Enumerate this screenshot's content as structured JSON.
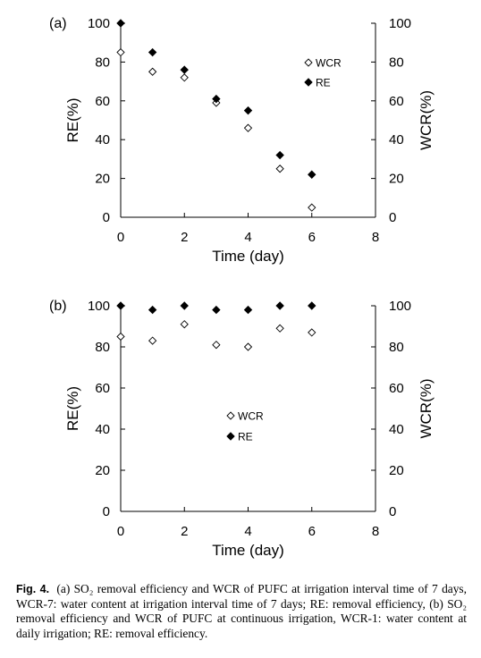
{
  "chart_data": [
    {
      "type": "scatter",
      "panel_label": "(a)",
      "xlabel": "Time (day)",
      "ylabel_left": "RE(%)",
      "ylabel_right": "WCR(%)",
      "xlim": [
        0,
        8
      ],
      "ylim": [
        0,
        100
      ],
      "xticks": [
        "0",
        "2",
        "4",
        "6",
        "8"
      ],
      "yticks": [
        "0",
        "20",
        "40",
        "60",
        "80",
        "100"
      ],
      "legend_position": "right",
      "grid": false,
      "series": [
        {
          "name": "WCR",
          "marker": "open-diamond",
          "color": "#000000",
          "x": [
            0,
            1,
            2,
            3,
            4,
            5,
            6
          ],
          "y": [
            85,
            75,
            72,
            59,
            46,
            25,
            5
          ]
        },
        {
          "name": "RE",
          "marker": "filled-diamond",
          "color": "#000000",
          "x": [
            0,
            1,
            2,
            3,
            4,
            5,
            6
          ],
          "y": [
            100,
            85,
            76,
            61,
            55,
            32,
            22
          ]
        }
      ]
    },
    {
      "type": "scatter",
      "panel_label": "(b)",
      "xlabel": "Time (day)",
      "ylabel_left": "RE(%)",
      "ylabel_right": "WCR(%)",
      "xlim": [
        0,
        8
      ],
      "ylim": [
        0,
        100
      ],
      "xticks": [
        "0",
        "2",
        "4",
        "6",
        "8"
      ],
      "yticks": [
        "0",
        "20",
        "40",
        "60",
        "80",
        "100"
      ],
      "legend_position": "center",
      "grid": false,
      "series": [
        {
          "name": "WCR",
          "marker": "open-diamond",
          "color": "#000000",
          "x": [
            0,
            1,
            2,
            3,
            4,
            5,
            6
          ],
          "y": [
            85,
            83,
            91,
            81,
            80,
            89,
            87
          ]
        },
        {
          "name": "RE",
          "marker": "filled-diamond",
          "color": "#000000",
          "x": [
            0,
            1,
            2,
            3,
            4,
            5,
            6
          ],
          "y": [
            100,
            98,
            100,
            98,
            98,
            100,
            100
          ]
        }
      ]
    }
  ],
  "caption": {
    "label": "Fig. 4.",
    "text": "(a) SO₂ removal efficiency and WCR of PUFC at irrigation interval time of 7 days, WCR-7: water content at irrigation interval time of 7 days; RE: removal efficiency, (b) SO₂ removal efficiency and WCR of PUFC at continuous irrigation, WCR-1: water content at daily irrigation; RE: removal efficiency."
  }
}
